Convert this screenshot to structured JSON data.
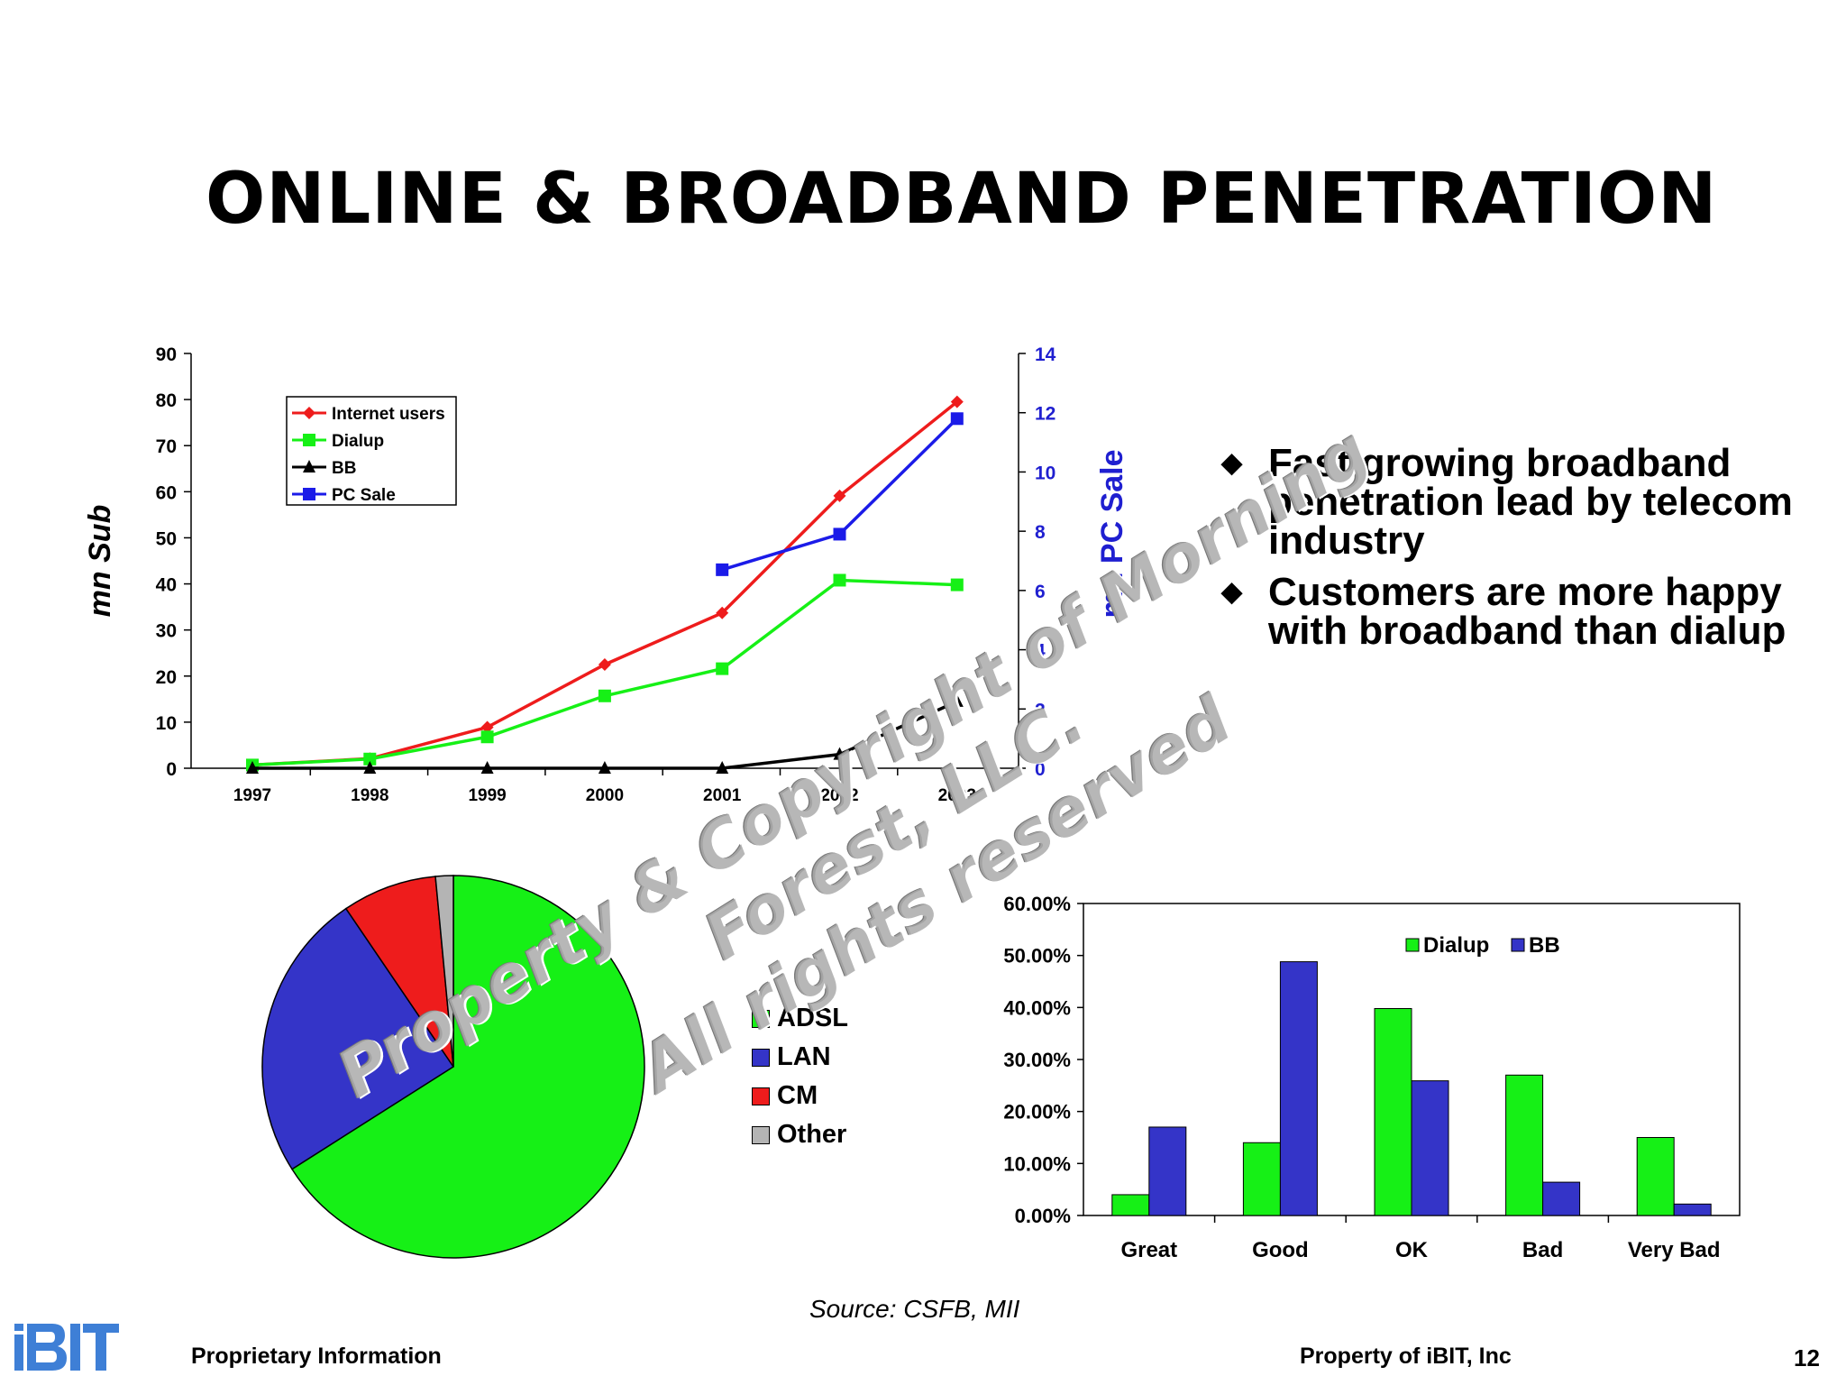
{
  "slide": {
    "title": "ONLINE & BROADBAND PENETRATION",
    "bullets": [
      "Fast growing broadband penetration lead by telecom industry",
      "Customers are more happy with broadband than dialup"
    ],
    "source": "Source: CSFB, MII",
    "footer_left": "Proprietary Information",
    "footer_right": "Property of iBIT, Inc",
    "page_number": "12",
    "logo_text": "iBIT",
    "watermark_lines": [
      "Property & Copyright of Morning Forest, LLC.",
      "All rights reserved"
    ]
  },
  "colors": {
    "red": "#ee1c1c",
    "green": "#16f016",
    "black": "#000000",
    "blue": "#1b1be8",
    "lan_blue": "#3434c8",
    "gray": "#b4b4b4",
    "axis_blue": "#1f1fd0",
    "logo_blue": "#3e7fd6"
  },
  "chart_data": [
    {
      "type": "line",
      "x": [
        "1997",
        "1998",
        "1999",
        "2000",
        "2001",
        "2002",
        "2003"
      ],
      "ylabel": "mn Sub",
      "y2label": "mn PC Sale",
      "ylim": [
        0,
        90
      ],
      "y2lim": [
        0,
        14
      ],
      "yticks": [
        "0",
        "10",
        "20",
        "30",
        "40",
        "50",
        "60",
        "70",
        "80",
        "90"
      ],
      "y2ticks": [
        "0",
        "2",
        "4",
        "6",
        "8",
        "10",
        "12",
        "14"
      ],
      "grid": false,
      "legend": "top-left",
      "series": [
        {
          "name": "Internet users",
          "axis": "left",
          "marker": "diamond",
          "color": "#ee1c1c",
          "values": [
            0.7,
            2.1,
            8.9,
            22.5,
            33.7,
            59.1,
            79.5
          ]
        },
        {
          "name": "Dialup",
          "axis": "left",
          "marker": "square",
          "color": "#16f016",
          "values": [
            0.7,
            2.0,
            6.8,
            15.7,
            21.6,
            40.8,
            39.8
          ]
        },
        {
          "name": "BB",
          "axis": "left",
          "marker": "triangle",
          "color": "#000000",
          "values": [
            0,
            0,
            0,
            0,
            0,
            3,
            14.5
          ]
        },
        {
          "name": "PC Sale",
          "axis": "right",
          "marker": "square",
          "color": "#1b1be8",
          "values": [
            null,
            null,
            null,
            null,
            6.7,
            7.9,
            11.8
          ]
        }
      ]
    },
    {
      "type": "pie",
      "labels": [
        "ADSL",
        "LAN",
        "CM",
        "Other"
      ],
      "values": [
        66.0,
        24.5,
        8.0,
        1.5
      ],
      "colors": [
        "#16f016",
        "#3434c8",
        "#ee1c1c",
        "#b4b4b4"
      ],
      "legend": "right"
    },
    {
      "type": "bar",
      "categories": [
        "Great",
        "Good",
        "OK",
        "Bad",
        "Very Bad"
      ],
      "ylim": [
        0,
        60
      ],
      "yticks": [
        "0.00%",
        "10.00%",
        "20.00%",
        "30.00%",
        "40.00%",
        "50.00%",
        "60.00%"
      ],
      "legend": "top-right",
      "series": [
        {
          "name": "Dialup",
          "color": "#16f016",
          "values": [
            4.0,
            14.0,
            39.8,
            27.0,
            15.0
          ]
        },
        {
          "name": "BB",
          "color": "#3434c8",
          "values": [
            17.0,
            48.8,
            25.9,
            6.4,
            2.2
          ]
        }
      ]
    }
  ]
}
